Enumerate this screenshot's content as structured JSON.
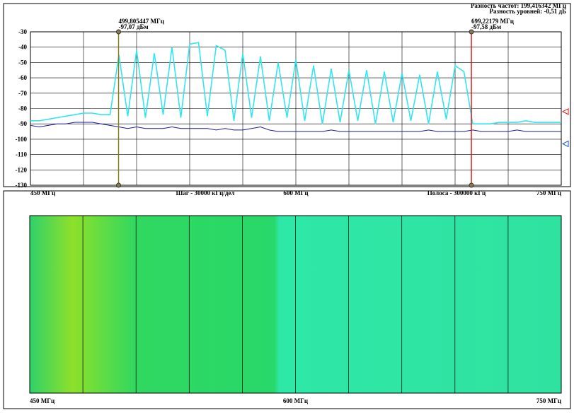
{
  "header": [
    "Разность частот: 199,416342 МГц",
    "Разность уровней: -0,51 дБ"
  ],
  "chart_data": [
    {
      "type": "line",
      "xlim": [
        450,
        750
      ],
      "ylim": [
        -130,
        -30
      ],
      "xticks": [
        {
          "value": 450,
          "label": "450 МГц"
        },
        {
          "value": 600,
          "label": "600 МГц"
        },
        {
          "value": 750,
          "label": "750 МГц"
        }
      ],
      "xminor": [
        480,
        510,
        540,
        570,
        630,
        660,
        690,
        720
      ],
      "yticks": [
        -30,
        -40,
        -50,
        -60,
        -70,
        -80,
        -90,
        -100,
        -110,
        -120,
        -130
      ],
      "grid": true,
      "annotations": [
        "Шаг - 30000 кГц/дел",
        "Полоса - 300000 кГц"
      ],
      "x": [
        450,
        455,
        460,
        465,
        470,
        475,
        480,
        485,
        490,
        495,
        500,
        505,
        510,
        515,
        520,
        525,
        530,
        535,
        540,
        545,
        550,
        555,
        560,
        565,
        570,
        575,
        580,
        585,
        590,
        595,
        600,
        605,
        610,
        615,
        620,
        625,
        630,
        635,
        640,
        645,
        650,
        655,
        660,
        665,
        670,
        675,
        680,
        685,
        690,
        695,
        700,
        705,
        710,
        715,
        720,
        725,
        730,
        735,
        740,
        745,
        750
      ],
      "series": [
        {
          "color": "#33e5f0",
          "values": [
            -88,
            -88,
            -87,
            -86,
            -85,
            -84,
            -83,
            -83,
            -84,
            -84,
            -45,
            -85,
            -42,
            -86,
            -44,
            -84,
            -40,
            -86,
            -38,
            -37,
            -85,
            -39,
            -42,
            -88,
            -44,
            -86,
            -46,
            -88,
            -50,
            -86,
            -48,
            -88,
            -52,
            -90,
            -54,
            -89,
            -55,
            -88,
            -55,
            -90,
            -56,
            -89,
            -57,
            -88,
            -58,
            -90,
            -56,
            -87,
            -52,
            -56,
            -90,
            -90,
            -90,
            -89,
            -89,
            -89,
            -88,
            -89,
            -89,
            -89,
            -89
          ]
        },
        {
          "color": "#1a1aa0",
          "values": [
            -91,
            -92,
            -91,
            -90,
            -90,
            -89,
            -89,
            -89,
            -90,
            -91,
            -92,
            -93,
            -92,
            -93,
            -93,
            -93,
            -92,
            -93,
            -93,
            -93,
            -93,
            -94,
            -93,
            -94,
            -94,
            -93,
            -92,
            -94,
            -95,
            -95,
            -95,
            -95,
            -95,
            -95,
            -94,
            -95,
            -95,
            -95,
            -95,
            -95,
            -95,
            -95,
            -95,
            -95,
            -95,
            -94,
            -95,
            -95,
            -95,
            -95,
            -94,
            -95,
            -95,
            -95,
            -95,
            -94,
            -95,
            -95,
            -95,
            -95,
            -95
          ]
        }
      ],
      "markers": [
        {
          "x": {
            "value": 499.805447,
            "label": "499,805447 МГц"
          },
          "level": {
            "value": -97.07,
            "label": "-97,07 дБм"
          },
          "color": "#8a7a10"
        },
        {
          "x": {
            "value": 699.22179,
            "label": "699,22179 МГц"
          },
          "level": {
            "value": -97.58,
            "label": "-97,58 дБм"
          },
          "color": "#e01010"
        }
      ],
      "level_markers": [
        {
          "value": -82,
          "color": "#e01010"
        },
        {
          "value": -103,
          "color": "#1a50d0"
        }
      ]
    },
    {
      "type": "waterfall",
      "xlim": [
        450,
        750
      ],
      "xticks": [
        {
          "value": 450,
          "label": "450 МГц"
        },
        {
          "value": 600,
          "label": "600 МГц"
        },
        {
          "value": 750,
          "label": "750 МГц"
        }
      ],
      "xminor": [
        480,
        510,
        540,
        570,
        630,
        660,
        690,
        720
      ]
    }
  ]
}
